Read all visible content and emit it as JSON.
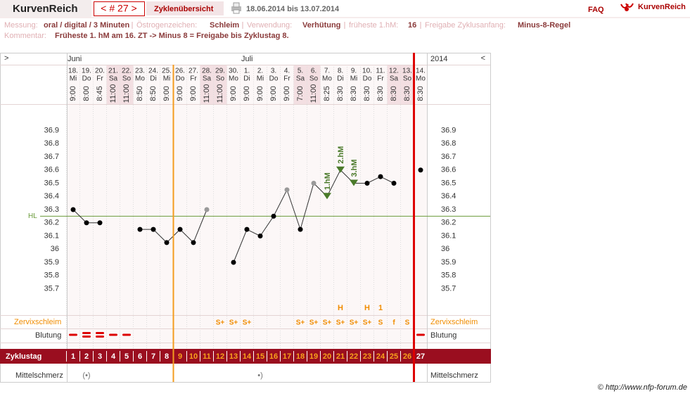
{
  "header": {
    "brand": "KurvenReich",
    "cycle": "< # 27 >",
    "overview": "Zyklenübersicht",
    "range": "18.06.2014 bis 13.07.2014",
    "faq": "FAQ",
    "logo": "KurvenReich",
    "copyright": "© http://www.nfp-forum.de"
  },
  "info": [
    {
      "label": "Messung:",
      "value": "oral / digital / 3 Minuten"
    },
    {
      "label": "Östrogenzeichen:",
      "value": "Schleim"
    },
    {
      "label": "Verwendung:",
      "value": "Verhütung"
    },
    {
      "label": "früheste 1.hM:",
      "value": "16"
    },
    {
      "label": "Freigabe Zyklusanfang:",
      "value": "Minus-8-Regel"
    }
  ],
  "comment": {
    "label": "Kommentar:",
    "value": "Früheste 1. hM am 16. ZT -> Minus 8 = Freigabe bis Zyklustag 8."
  },
  "chart_data": {
    "type": "line",
    "nav_left": ">",
    "nav_right": "<",
    "year": "2014",
    "months": [
      "Juni",
      null,
      null,
      null,
      null,
      null,
      null,
      null,
      null,
      null,
      null,
      null,
      null,
      "Juli",
      null,
      null,
      null,
      null,
      null,
      null,
      null,
      null,
      null,
      null,
      null,
      null,
      null
    ],
    "categories": [
      "18.",
      "19.",
      "20.",
      "21.",
      "22.",
      "23.",
      "24.",
      "25.",
      "26.",
      "27.",
      "28.",
      "29.",
      "30.",
      "1.",
      "2.",
      "3.",
      "4.",
      "5.",
      "6.",
      "7.",
      "8.",
      "9.",
      "10.",
      "11.",
      "12.",
      "13.",
      "14."
    ],
    "weekdays": [
      "Mi",
      "Do",
      "Fr",
      "Sa",
      "So",
      "Mo",
      "Di",
      "Mi",
      "Do",
      "Fr",
      "Sa",
      "So",
      "Mo",
      "Di",
      "Mi",
      "Do",
      "Fr",
      "Sa",
      "So",
      "Mo",
      "Di",
      "Mi",
      "Do",
      "Fr",
      "Sa",
      "So",
      "Mo"
    ],
    "times": [
      "9:00",
      "8:00",
      "8:45",
      "11:00",
      "11:00",
      "8:50",
      "8:50",
      "9:00",
      "9:00",
      "9:00",
      "11:00",
      "11:00",
      "9:00",
      "9:00",
      "9:00",
      "9:00",
      "9:00",
      "7:00",
      "11:00",
      "8:25",
      "8:30",
      "8:30",
      "8:30",
      "8:30",
      "8:30",
      "8:30",
      "8:30"
    ],
    "values": [
      36.3,
      36.2,
      36.2,
      null,
      null,
      36.15,
      36.15,
      36.05,
      36.15,
      36.05,
      36.3,
      null,
      35.9,
      36.15,
      36.1,
      36.25,
      36.45,
      36.15,
      36.5,
      36.4,
      36.6,
      36.5,
      36.5,
      36.55,
      36.5,
      null,
      36.6
    ],
    "marker_colors": [
      "#000",
      "#000",
      "#000",
      null,
      null,
      "#000",
      "#000",
      "#000",
      "#000",
      "#000",
      "#999",
      null,
      "#000",
      "#000",
      "#000",
      "#000",
      "#999",
      "#000",
      "#999",
      "#4a7a2a",
      "#4a7a2a",
      "#4a7a2a",
      "#000",
      "#000",
      "#000",
      null,
      "#000"
    ],
    "temp_labels": [
      null,
      null,
      null,
      null,
      null,
      null,
      null,
      null,
      null,
      null,
      null,
      null,
      null,
      null,
      null,
      null,
      null,
      null,
      null,
      "1.hM",
      "2.hM",
      "3.hM",
      null,
      null,
      null,
      null,
      null
    ],
    "coverline": {
      "value": 36.25,
      "label": "HL",
      "color": "#6a9a3a"
    },
    "ylim": [
      35.5,
      37.1
    ],
    "yticks": [
      35.7,
      35.8,
      35.9,
      36,
      36.1,
      36.2,
      36.3,
      36.4,
      36.5,
      36.6,
      36.7,
      36.8,
      36.9
    ],
    "vlines": [
      {
        "after": 8,
        "color": "#f39c1f"
      },
      {
        "after": 26,
        "color": "#dd0000"
      }
    ],
    "cervix": {
      "label": "Zervixschleim",
      "top": [
        null,
        null,
        null,
        null,
        null,
        null,
        null,
        null,
        null,
        null,
        null,
        null,
        null,
        null,
        null,
        null,
        null,
        null,
        null,
        null,
        "H",
        null,
        "H",
        "1",
        null,
        null,
        null
      ],
      "values": [
        null,
        null,
        null,
        null,
        null,
        null,
        null,
        null,
        null,
        null,
        null,
        "S+",
        "S+",
        "S+",
        null,
        null,
        null,
        "S+",
        "S+",
        "S+",
        "S+",
        "S+",
        "S+",
        "S",
        "f",
        "S",
        null
      ]
    },
    "bleeding": {
      "label": "Blutung",
      "color": "#dd0000",
      "values": [
        1,
        2,
        2,
        1,
        1,
        null,
        null,
        null,
        null,
        null,
        null,
        null,
        null,
        null,
        null,
        null,
        null,
        null,
        null,
        null,
        null,
        null,
        null,
        null,
        null,
        null,
        1
      ]
    },
    "cycle_day": {
      "label": "Zyklustag",
      "values": [
        1,
        2,
        3,
        4,
        5,
        6,
        7,
        8,
        9,
        10,
        11,
        12,
        13,
        14,
        15,
        16,
        17,
        18,
        19,
        20,
        21,
        22,
        23,
        24,
        25,
        26,
        27
      ]
    },
    "pain": {
      "label": "Mittelschmerz",
      "values": [
        null,
        "(•)",
        null,
        null,
        null,
        null,
        null,
        null,
        null,
        null,
        null,
        null,
        null,
        null,
        "•)",
        null,
        null,
        null,
        null,
        null,
        null,
        null,
        null,
        null,
        null,
        null,
        null
      ]
    }
  }
}
